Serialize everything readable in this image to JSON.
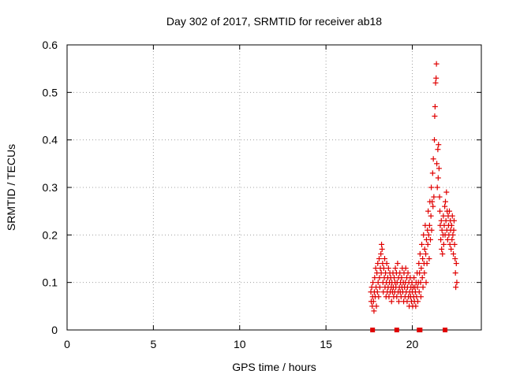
{
  "chart_data": {
    "type": "scatter",
    "title": "Day 302 of 2017, SRMTID for receiver ab18",
    "xlabel": "GPS time / hours",
    "ylabel": "SRMTID / TECUs",
    "xlim": [
      0,
      24
    ],
    "ylim": [
      0,
      0.6
    ],
    "xticks": [
      0,
      5,
      10,
      15,
      20
    ],
    "xtick_labels": [
      "0",
      "5",
      "10",
      "15",
      "20"
    ],
    "yticks": [
      0,
      0.1,
      0.2,
      0.3,
      0.4,
      0.5,
      0.6
    ],
    "ytick_labels": [
      "0",
      "0.1",
      "0.2",
      "0.3",
      "0.4",
      "0.5",
      "0.6"
    ],
    "grid": true,
    "marker": "+",
    "color": "#e00000",
    "series": [
      {
        "name": "SRMTID",
        "points": [
          [
            17.6,
            0.08
          ],
          [
            17.62,
            0.06
          ],
          [
            17.65,
            0.09
          ],
          [
            17.68,
            0.05
          ],
          [
            17.7,
            0.07
          ],
          [
            17.72,
            0.1
          ],
          [
            17.75,
            0.06
          ],
          [
            17.78,
            0.04
          ],
          [
            17.8,
            0.08
          ],
          [
            17.82,
            0.11
          ],
          [
            17.85,
            0.07
          ],
          [
            17.88,
            0.13
          ],
          [
            17.9,
            0.09
          ],
          [
            17.92,
            0.05
          ],
          [
            17.95,
            0.12
          ],
          [
            17.98,
            0.08
          ],
          [
            18.0,
            0.14
          ],
          [
            18.02,
            0.1
          ],
          [
            18.05,
            0.07
          ],
          [
            18.08,
            0.15
          ],
          [
            18.1,
            0.11
          ],
          [
            18.12,
            0.09
          ],
          [
            18.15,
            0.13
          ],
          [
            18.18,
            0.16
          ],
          [
            18.2,
            0.12
          ],
          [
            18.22,
            0.18
          ],
          [
            18.25,
            0.17
          ],
          [
            18.28,
            0.14
          ],
          [
            18.3,
            0.1
          ],
          [
            18.32,
            0.08
          ],
          [
            18.35,
            0.13
          ],
          [
            18.38,
            0.11
          ],
          [
            18.4,
            0.15
          ],
          [
            18.42,
            0.09
          ],
          [
            18.45,
            0.12
          ],
          [
            18.48,
            0.07
          ],
          [
            18.5,
            0.1
          ],
          [
            18.52,
            0.14
          ],
          [
            18.55,
            0.08
          ],
          [
            18.58,
            0.11
          ],
          [
            18.6,
            0.09
          ],
          [
            18.62,
            0.13
          ],
          [
            18.65,
            0.07
          ],
          [
            18.68,
            0.1
          ],
          [
            18.7,
            0.12
          ],
          [
            18.72,
            0.08
          ],
          [
            18.75,
            0.11
          ],
          [
            18.78,
            0.09
          ],
          [
            18.8,
            0.06
          ],
          [
            18.82,
            0.1
          ],
          [
            18.85,
            0.08
          ],
          [
            18.88,
            0.12
          ],
          [
            18.9,
            0.09
          ],
          [
            18.92,
            0.07
          ],
          [
            18.95,
            0.11
          ],
          [
            18.98,
            0.08
          ],
          [
            19.0,
            0.1
          ],
          [
            19.02,
            0.13
          ],
          [
            19.05,
            0.09
          ],
          [
            19.08,
            0.12
          ],
          [
            19.1,
            0.07
          ],
          [
            19.12,
            0.1
          ],
          [
            19.15,
            0.14
          ],
          [
            19.18,
            0.08
          ],
          [
            19.2,
            0.11
          ],
          [
            19.22,
            0.06
          ],
          [
            19.25,
            0.09
          ],
          [
            19.28,
            0.12
          ],
          [
            19.3,
            0.08
          ],
          [
            19.32,
            0.1
          ],
          [
            19.35,
            0.07
          ],
          [
            19.38,
            0.11
          ],
          [
            19.4,
            0.09
          ],
          [
            19.42,
            0.13
          ],
          [
            19.45,
            0.08
          ],
          [
            19.48,
            0.1
          ],
          [
            19.5,
            0.06
          ],
          [
            19.52,
            0.12
          ],
          [
            19.55,
            0.09
          ],
          [
            19.58,
            0.07
          ],
          [
            19.6,
            0.1
          ],
          [
            19.62,
            0.13
          ],
          [
            19.65,
            0.08
          ],
          [
            19.68,
            0.11
          ],
          [
            19.7,
            0.06
          ],
          [
            19.72,
            0.09
          ],
          [
            19.75,
            0.12
          ],
          [
            19.78,
            0.07
          ],
          [
            19.8,
            0.1
          ],
          [
            19.82,
            0.05
          ],
          [
            19.85,
            0.08
          ],
          [
            19.88,
            0.11
          ],
          [
            19.9,
            0.07
          ],
          [
            19.92,
            0.09
          ],
          [
            19.95,
            0.06
          ],
          [
            19.98,
            0.1
          ],
          [
            20.0,
            0.08
          ],
          [
            20.02,
            0.05
          ],
          [
            20.05,
            0.09
          ],
          [
            20.08,
            0.07
          ],
          [
            20.1,
            0.11
          ],
          [
            20.12,
            0.06
          ],
          [
            20.15,
            0.09
          ],
          [
            20.18,
            0.08
          ],
          [
            20.2,
            0.05
          ],
          [
            20.22,
            0.1
          ],
          [
            20.25,
            0.07
          ],
          [
            20.28,
            0.12
          ],
          [
            20.3,
            0.09
          ],
          [
            20.32,
            0.06
          ],
          [
            20.35,
            0.1
          ],
          [
            20.38,
            0.14
          ],
          [
            20.4,
            0.08
          ],
          [
            20.42,
            0.12
          ],
          [
            20.45,
            0.16
          ],
          [
            20.48,
            0.1
          ],
          [
            20.5,
            0.07
          ],
          [
            20.52,
            0.13
          ],
          [
            20.55,
            0.18
          ],
          [
            20.58,
            0.11
          ],
          [
            20.6,
            0.15
          ],
          [
            20.62,
            0.09
          ],
          [
            20.65,
            0.2
          ],
          [
            20.68,
            0.14
          ],
          [
            20.7,
            0.12
          ],
          [
            20.72,
            0.17
          ],
          [
            20.75,
            0.22
          ],
          [
            20.78,
            0.16
          ],
          [
            20.8,
            0.1
          ],
          [
            20.82,
            0.19
          ],
          [
            20.85,
            0.14
          ],
          [
            20.88,
            0.21
          ],
          [
            20.9,
            0.18
          ],
          [
            20.92,
            0.25
          ],
          [
            20.95,
            0.2
          ],
          [
            20.98,
            0.15
          ],
          [
            21.0,
            0.22
          ],
          [
            21.02,
            0.27
          ],
          [
            21.05,
            0.19
          ],
          [
            21.08,
            0.24
          ],
          [
            21.1,
            0.3
          ],
          [
            21.12,
            0.21
          ],
          [
            21.15,
            0.27
          ],
          [
            21.18,
            0.33
          ],
          [
            21.2,
            0.26
          ],
          [
            21.22,
            0.36
          ],
          [
            21.25,
            0.28
          ],
          [
            21.28,
            0.4
          ],
          [
            21.3,
            0.45
          ],
          [
            21.32,
            0.47
          ],
          [
            21.35,
            0.52
          ],
          [
            21.38,
            0.53
          ],
          [
            21.4,
            0.56
          ],
          [
            21.42,
            0.35
          ],
          [
            21.45,
            0.3
          ],
          [
            21.48,
            0.38
          ],
          [
            21.5,
            0.32
          ],
          [
            21.52,
            0.39
          ],
          [
            21.55,
            0.34
          ],
          [
            21.58,
            0.28
          ],
          [
            21.6,
            0.25
          ],
          [
            21.62,
            0.22
          ],
          [
            21.65,
            0.19
          ],
          [
            21.68,
            0.23
          ],
          [
            21.7,
            0.17
          ],
          [
            21.72,
            0.21
          ],
          [
            21.75,
            0.16
          ],
          [
            21.78,
            0.2
          ],
          [
            21.8,
            0.24
          ],
          [
            21.82,
            0.18
          ],
          [
            21.85,
            0.22
          ],
          [
            21.88,
            0.26
          ],
          [
            21.9,
            0.2
          ],
          [
            21.92,
            0.27
          ],
          [
            21.95,
            0.23
          ],
          [
            21.98,
            0.29
          ],
          [
            22.0,
            0.21
          ],
          [
            22.02,
            0.25
          ],
          [
            22.05,
            0.19
          ],
          [
            22.08,
            0.24
          ],
          [
            22.1,
            0.22
          ],
          [
            22.12,
            0.2
          ],
          [
            22.15,
            0.25
          ],
          [
            22.18,
            0.18
          ],
          [
            22.2,
            0.23
          ],
          [
            22.22,
            0.21
          ],
          [
            22.25,
            0.17
          ],
          [
            22.28,
            0.22
          ],
          [
            22.3,
            0.19
          ],
          [
            22.32,
            0.24
          ],
          [
            22.35,
            0.2
          ],
          [
            22.38,
            0.16
          ],
          [
            22.4,
            0.21
          ],
          [
            22.42,
            0.23
          ],
          [
            22.45,
            0.18
          ],
          [
            22.48,
            0.15
          ],
          [
            22.5,
            0.12
          ],
          [
            22.52,
            0.09
          ],
          [
            22.55,
            0.14
          ],
          [
            22.58,
            0.1
          ]
        ]
      },
      {
        "name": "baseline markers",
        "marker": "square",
        "points": [
          [
            17.7,
            0
          ],
          [
            19.1,
            0
          ],
          [
            20.4,
            0
          ],
          [
            20.45,
            0
          ],
          [
            21.9,
            0
          ]
        ]
      }
    ]
  }
}
